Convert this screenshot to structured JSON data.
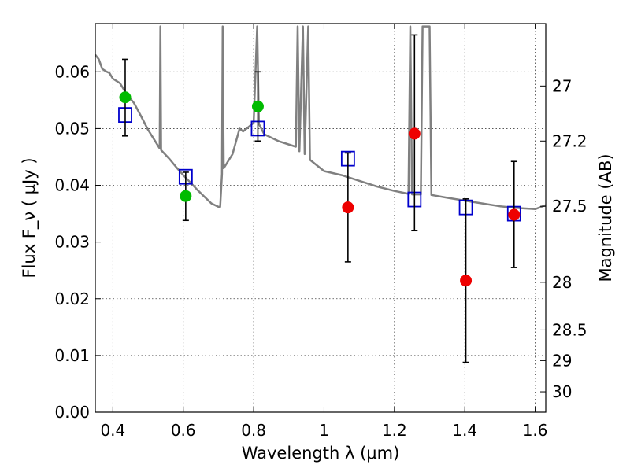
{
  "chart_data": {
    "type": "scatter",
    "title": "",
    "xlabel": "Wavelength  λ (μm)",
    "ylabel": "Flux  F_ν  ( μJy )",
    "y2label": "Magnitude (AB)",
    "xlim": [
      0.35,
      1.63
    ],
    "ylim": [
      0.0,
      0.0685
    ],
    "grid": true,
    "x_ticks": [
      0.4,
      0.6,
      0.8,
      1.0,
      1.2,
      1.4,
      1.6
    ],
    "x_tick_labels": [
      "0.4",
      "0.6",
      "0.8",
      "1",
      "1.2",
      "1.4",
      "1.6"
    ],
    "y_ticks": [
      0.0,
      0.01,
      0.02,
      0.03,
      0.04,
      0.05,
      0.06
    ],
    "y_tick_labels": [
      "0.00",
      "0.01",
      "0.02",
      "0.03",
      "0.04",
      "0.05",
      "0.06"
    ],
    "y2_ticks": [
      {
        "label": "27",
        "flux": 0.0575
      },
      {
        "label": "27.2",
        "flux": 0.0478
      },
      {
        "label": "27.5",
        "flux": 0.0363
      },
      {
        "label": "28",
        "flux": 0.0229
      },
      {
        "label": "28.5",
        "flux": 0.0145
      },
      {
        "label": "29",
        "flux": 0.0091
      },
      {
        "label": "30",
        "flux": 0.0036
      }
    ],
    "series": [
      {
        "kind": "line",
        "color": "#808080",
        "points": [
          [
            0.35,
            0.063
          ],
          [
            0.36,
            0.0622
          ],
          [
            0.37,
            0.0605
          ],
          [
            0.38,
            0.0601
          ],
          [
            0.39,
            0.0598
          ],
          [
            0.4,
            0.0588
          ],
          [
            0.42,
            0.058
          ],
          [
            0.44,
            0.056
          ],
          [
            0.46,
            0.0545
          ],
          [
            0.48,
            0.0522
          ],
          [
            0.5,
            0.0498
          ],
          [
            0.52,
            0.0478
          ],
          [
            0.533,
            0.0465
          ],
          [
            0.535,
            0.068
          ],
          [
            0.537,
            0.0462
          ],
          [
            0.56,
            0.0447
          ],
          [
            0.58,
            0.0432
          ],
          [
            0.6,
            0.0418
          ],
          [
            0.62,
            0.0405
          ],
          [
            0.64,
            0.0392
          ],
          [
            0.66,
            0.038
          ],
          [
            0.68,
            0.0368
          ],
          [
            0.7,
            0.0362
          ],
          [
            0.705,
            0.0362
          ],
          [
            0.71,
            0.042
          ],
          [
            0.712,
            0.068
          ],
          [
            0.715,
            0.043
          ],
          [
            0.74,
            0.0455
          ],
          [
            0.76,
            0.05
          ],
          [
            0.77,
            0.0495
          ],
          [
            0.79,
            0.0505
          ],
          [
            0.8,
            0.051
          ],
          [
            0.81,
            0.068
          ],
          [
            0.815,
            0.0508
          ],
          [
            0.83,
            0.049
          ],
          [
            0.87,
            0.0478
          ],
          [
            0.92,
            0.0468
          ],
          [
            0.925,
            0.068
          ],
          [
            0.93,
            0.046
          ],
          [
            0.94,
            0.068
          ],
          [
            0.945,
            0.0455
          ],
          [
            0.955,
            0.068
          ],
          [
            0.96,
            0.0445
          ],
          [
            1.0,
            0.0425
          ],
          [
            1.05,
            0.0418
          ],
          [
            1.1,
            0.0408
          ],
          [
            1.15,
            0.0398
          ],
          [
            1.2,
            0.039
          ],
          [
            1.24,
            0.0385
          ],
          [
            1.245,
            0.068
          ],
          [
            1.25,
            0.0384
          ],
          [
            1.275,
            0.0384
          ],
          [
            1.28,
            0.068
          ],
          [
            1.3,
            0.068
          ],
          [
            1.305,
            0.0383
          ],
          [
            1.35,
            0.0378
          ],
          [
            1.4,
            0.0373
          ],
          [
            1.45,
            0.0368
          ],
          [
            1.5,
            0.0363
          ],
          [
            1.55,
            0.036
          ],
          [
            1.6,
            0.0358
          ],
          [
            1.63,
            0.0365
          ]
        ]
      },
      {
        "kind": "model_boxes",
        "color": "#0000cc",
        "points": [
          [
            0.435,
            0.0524
          ],
          [
            0.607,
            0.0415
          ],
          [
            0.812,
            0.05
          ],
          [
            1.068,
            0.0447
          ],
          [
            1.257,
            0.0375
          ],
          [
            1.403,
            0.0361
          ],
          [
            1.54,
            0.035
          ]
        ]
      },
      {
        "kind": "detections",
        "color": "#00bb00",
        "points": [
          {
            "x": 0.435,
            "y": 0.0555,
            "ylo": 0.0487,
            "yhi": 0.0622
          },
          {
            "x": 0.607,
            "y": 0.0381,
            "ylo": 0.0338,
            "yhi": 0.0423
          },
          {
            "x": 0.812,
            "y": 0.0539,
            "ylo": 0.0478,
            "yhi": 0.06
          }
        ]
      },
      {
        "kind": "upper_limits",
        "color": "#ee0000",
        "points": [
          {
            "x": 1.068,
            "y": 0.0361,
            "ylo": 0.0265,
            "yhi": 0.0457
          },
          {
            "x": 1.257,
            "y": 0.0491,
            "ylo": 0.032,
            "yhi": 0.0665
          },
          {
            "x": 1.403,
            "y": 0.0232,
            "ylo": 0.0088,
            "yhi": 0.0376
          },
          {
            "x": 1.54,
            "y": 0.0348,
            "ylo": 0.0255,
            "yhi": 0.0442
          }
        ]
      }
    ]
  }
}
